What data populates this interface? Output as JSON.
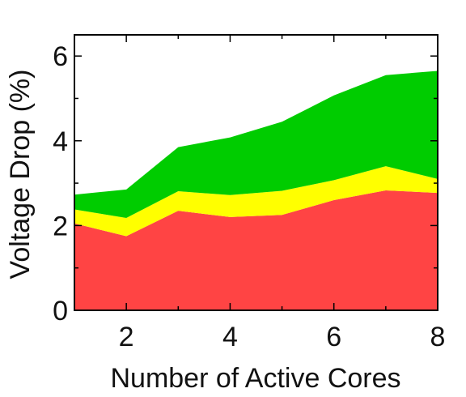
{
  "chart_data": {
    "type": "area",
    "stacked": true,
    "title": "",
    "xlabel": "Number of Active Cores",
    "ylabel": "Voltage Drop (%)",
    "x": [
      1,
      2,
      3,
      4,
      5,
      6,
      7,
      8
    ],
    "xlim": [
      1,
      8
    ],
    "ylim": [
      0,
      6.5
    ],
    "xticks": [
      2,
      4,
      6,
      8
    ],
    "yticks": [
      0,
      2,
      4,
      6
    ],
    "grid": false,
    "legend": "none",
    "series": [
      {
        "color": "#ff4444",
        "values": [
          2.05,
          1.75,
          2.35,
          2.2,
          2.25,
          2.6,
          2.83,
          2.77
        ]
      },
      {
        "color": "#ffff00",
        "values": [
          0.33,
          0.43,
          0.46,
          0.52,
          0.57,
          0.47,
          0.57,
          0.33
        ]
      },
      {
        "color": "#00cc00",
        "values": [
          0.35,
          0.67,
          1.04,
          1.36,
          1.63,
          2.0,
          2.15,
          2.55
        ]
      }
    ]
  }
}
